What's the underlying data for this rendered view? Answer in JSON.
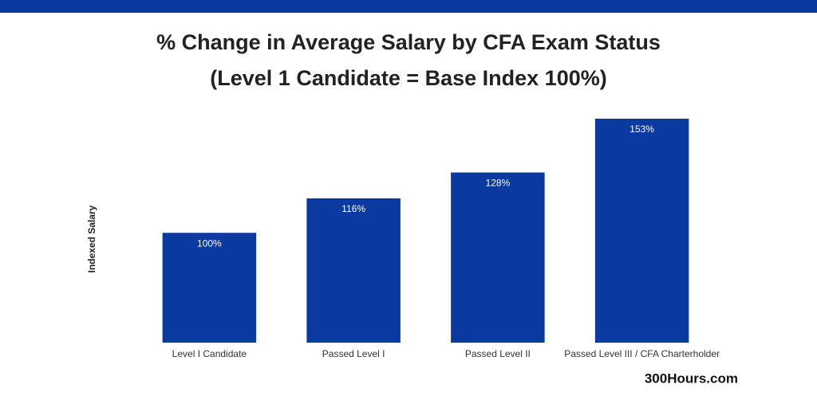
{
  "chart_data": {
    "type": "bar",
    "title": "% Change in Average Salary by CFA Exam Status",
    "subtitle": "(Level 1 Candidate = Base Index 100%)",
    "y_label": "Indexed Salary",
    "source": "300Hours.com",
    "categories": [
      "Level I Candidate",
      "Passed Level I",
      "Passed Level II",
      "Passed Level III / CFA Charterholder"
    ],
    "values": [
      100,
      116,
      128,
      153
    ],
    "value_labels": [
      "100%",
      "116%",
      "128%",
      "153%"
    ],
    "color": "#0a3a9f",
    "ylim": [
      49,
      160
    ]
  }
}
